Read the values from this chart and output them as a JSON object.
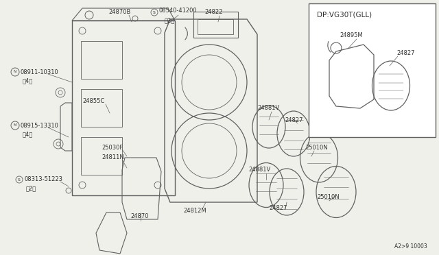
{
  "bg_color": "#f0f0eb",
  "line_color": "#606060",
  "text_color": "#303030",
  "title": "DP:VG30T(GLL)",
  "part_number_footer": "A2>9 10003",
  "figsize": [
    6.4,
    3.72
  ],
  "dpi": 100,
  "xlim": [
    0,
    640
  ],
  "ylim": [
    0,
    372
  ]
}
